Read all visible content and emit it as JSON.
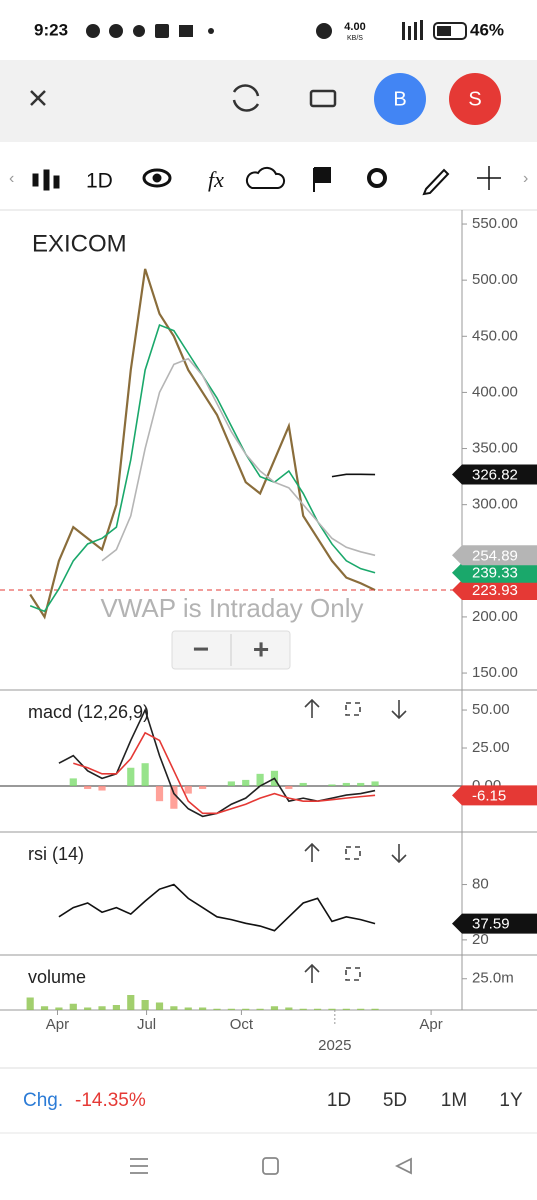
{
  "status_bar": {
    "time": "9:23",
    "net_speed": "4.00",
    "net_unit": "KB/S",
    "battery": "46%"
  },
  "header": {
    "avatar_1": "B",
    "avatar_2": "S"
  },
  "toolbar": {
    "interval": "1D"
  },
  "overlay": {
    "vwap_note": "VWAP is Intraday Only",
    "zoom_out": "−",
    "zoom_in": "+"
  },
  "chart_data": [
    {
      "type": "line",
      "title": "EXICOM",
      "x": [
        0,
        1,
        2,
        3,
        4,
        5,
        6,
        7,
        8,
        9,
        10,
        11,
        12,
        13,
        14,
        15,
        16,
        17,
        18,
        19,
        20,
        21,
        22,
        23,
        24
      ],
      "xlim": [
        -2.1,
        30.05
      ],
      "ylim": [
        134.9,
        562.5
      ],
      "yticks": [
        {
          "value": 150,
          "label": "150.00"
        },
        {
          "value": 200,
          "label": "200.00"
        },
        {
          "value": 250,
          "label": "250.00"
        },
        {
          "value": 300,
          "label": "300.00"
        },
        {
          "value": 350,
          "label": "350.00"
        },
        {
          "value": 400,
          "label": "400.00"
        },
        {
          "value": 450,
          "label": "450.00"
        },
        {
          "value": 500,
          "label": "500.00"
        },
        {
          "value": 550,
          "label": "550.00"
        }
      ],
      "last_price_color": "#e53935",
      "series": [
        {
          "name": "price",
          "color": "#8a6d3b",
          "values": [
            220,
            200,
            250,
            280,
            270,
            260,
            300,
            420,
            510,
            470,
            450,
            420,
            400,
            380,
            350,
            320,
            310,
            340,
            370,
            290,
            270,
            250,
            235,
            230,
            223.93
          ]
        },
        {
          "name": "sma-fast",
          "color": "#1aa86b",
          "values": [
            210,
            205,
            225,
            250,
            265,
            270,
            280,
            340,
            420,
            460,
            455,
            435,
            415,
            395,
            370,
            345,
            325,
            320,
            330,
            310,
            285,
            265,
            250,
            243,
            239.33
          ]
        },
        {
          "name": "sma-slow",
          "color": "#b5b5b5",
          "values": [
            null,
            null,
            null,
            null,
            null,
            250,
            260,
            290,
            350,
            400,
            425,
            430,
            415,
            390,
            365,
            345,
            330,
            320,
            315,
            300,
            285,
            270,
            262,
            258,
            254.89
          ]
        },
        {
          "name": "drawing",
          "color": "#111111",
          "values": [
            null,
            null,
            null,
            null,
            null,
            null,
            null,
            null,
            null,
            null,
            null,
            null,
            null,
            null,
            null,
            null,
            null,
            null,
            null,
            null,
            null,
            325,
            327,
            327,
            326.82
          ]
        }
      ]
    },
    {
      "type": "line",
      "title": "macd (12,26,9)",
      "x": [
        0,
        1,
        2,
        3,
        4,
        5,
        6,
        7,
        8,
        9,
        10,
        11,
        12,
        13,
        14,
        15,
        16,
        17,
        18,
        19,
        20,
        21,
        22,
        23,
        24
      ],
      "xlim": [
        -2.1,
        30.05
      ],
      "ylim": [
        -30.3,
        63.2
      ],
      "yticks": [
        {
          "value": 0,
          "label": "0.00"
        },
        {
          "value": 25,
          "label": "25.00"
        },
        {
          "value": 50,
          "label": "50.00"
        }
      ],
      "pos_color": "#7ddc6e",
      "neg_color": "#ff8a80",
      "series": [
        {
          "name": "histogram",
          "type": "bar",
          "values": [
            null,
            null,
            null,
            5,
            -2,
            -3,
            0,
            12,
            15,
            -10,
            -15,
            -5,
            -2,
            0,
            3,
            4,
            8,
            10,
            -2,
            2,
            0,
            1,
            2,
            2,
            3
          ]
        },
        {
          "name": "macd",
          "color": "#222222",
          "values": [
            null,
            null,
            15,
            20,
            10,
            5,
            8,
            30,
            50,
            20,
            -5,
            -15,
            -20,
            -18,
            -12,
            -8,
            0,
            5,
            -10,
            -8,
            -10,
            -8,
            -6,
            -5,
            -3
          ]
        },
        {
          "name": "signal",
          "color": "#e53935",
          "values": [
            null,
            null,
            null,
            15,
            12,
            8,
            8,
            18,
            35,
            30,
            10,
            -10,
            -18,
            -18,
            -15,
            -12,
            -8,
            -5,
            -8,
            -10,
            -10,
            -9,
            -8,
            -7,
            -6.15
          ]
        }
      ]
    },
    {
      "type": "line",
      "title": "rsi (14)",
      "x": [
        0,
        1,
        2,
        3,
        4,
        5,
        6,
        7,
        8,
        9,
        10,
        11,
        12,
        13,
        14,
        15,
        16,
        17,
        18,
        19,
        20,
        21,
        22,
        23,
        24
      ],
      "xlim": [
        -2.1,
        30.05
      ],
      "ylim": [
        3.6,
        137
      ],
      "yticks": [
        20,
        80
      ],
      "series": [
        {
          "name": "rsi",
          "color": "#111111",
          "values": [
            null,
            null,
            45,
            55,
            60,
            50,
            55,
            48,
            62,
            75,
            80,
            65,
            55,
            45,
            42,
            38,
            35,
            30,
            45,
            60,
            65,
            40,
            45,
            42,
            37.59
          ]
        }
      ]
    },
    {
      "type": "bar",
      "title": "volume",
      "x": [
        0,
        1,
        2,
        3,
        4,
        5,
        6,
        7,
        8,
        9,
        10,
        11,
        12,
        13,
        14,
        15,
        16,
        17,
        18,
        19,
        20,
        21,
        22,
        23,
        24
      ],
      "xlim": [
        -2.1,
        30.05
      ],
      "ylim": [
        0,
        44
      ],
      "yticks": [
        {
          "value": 25,
          "label": "25.0m"
        }
      ],
      "xticks": [
        {
          "value": 1.9,
          "label": "Apr"
        },
        {
          "value": 8.1,
          "label": "Jul"
        },
        {
          "value": 14.7,
          "label": "Oct"
        },
        {
          "value": 27.9,
          "label": "Apr"
        }
      ],
      "year_tick": {
        "value": 21.2,
        "label": "2025"
      },
      "series": [
        {
          "name": "volume",
          "color": "#8bc34a",
          "values": [
            10,
            3,
            2,
            5,
            2,
            3,
            4,
            12,
            8,
            6,
            3,
            2,
            2,
            1,
            1,
            1,
            1,
            3,
            2,
            1,
            1,
            1,
            1,
            1,
            1
          ]
        }
      ]
    }
  ],
  "footer": {
    "change_label": "Chg.",
    "change_value": "-14.35%",
    "ranges": [
      "1D",
      "5D",
      "1M",
      "1Y"
    ]
  }
}
